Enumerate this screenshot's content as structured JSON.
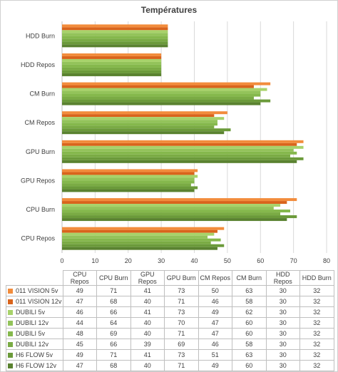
{
  "chart_data": {
    "type": "bar",
    "orientation": "horizontal",
    "title": "Températures",
    "categories": [
      "CPU Repos",
      "CPU Burn",
      "GPU Repos",
      "GPU Burn",
      "CM Repos",
      "CM Burn",
      "HDD Repos",
      "HDD Burn"
    ],
    "xlim": [
      0,
      80
    ],
    "xticks": [
      "0",
      "10",
      "20",
      "30",
      "40",
      "50",
      "60",
      "70",
      "80"
    ],
    "grid": true,
    "legend": "data-table",
    "series": [
      {
        "name": "011 VISION 5v",
        "color": "#f28c3c",
        "values": [
          49,
          71,
          41,
          73,
          50,
          63,
          30,
          32
        ]
      },
      {
        "name": "011 VISION 12v",
        "color": "#d9641c",
        "values": [
          47,
          68,
          40,
          71,
          46,
          58,
          30,
          32
        ]
      },
      {
        "name": "DUBILI 5v",
        "color": "#a8d26a",
        "values": [
          46,
          66,
          41,
          73,
          49,
          62,
          30,
          32
        ]
      },
      {
        "name": "DUBILI 12v",
        "color": "#93c35a",
        "values": [
          44,
          64,
          40,
          70,
          47,
          60,
          30,
          32
        ]
      },
      {
        "name": "DUBILI 5v",
        "color": "#85b84c",
        "values": [
          48,
          69,
          40,
          71,
          47,
          60,
          30,
          32
        ]
      },
      {
        "name": "DUBILI 12v",
        "color": "#7aab44",
        "values": [
          45,
          66,
          39,
          69,
          46,
          58,
          30,
          32
        ]
      },
      {
        "name": "H6 FLOW 5v",
        "color": "#6b9a3a",
        "values": [
          49,
          71,
          41,
          73,
          51,
          63,
          30,
          32
        ]
      },
      {
        "name": "H6 FLOW 12v",
        "color": "#5a8230",
        "values": [
          47,
          68,
          40,
          71,
          49,
          60,
          30,
          32
        ]
      }
    ]
  }
}
